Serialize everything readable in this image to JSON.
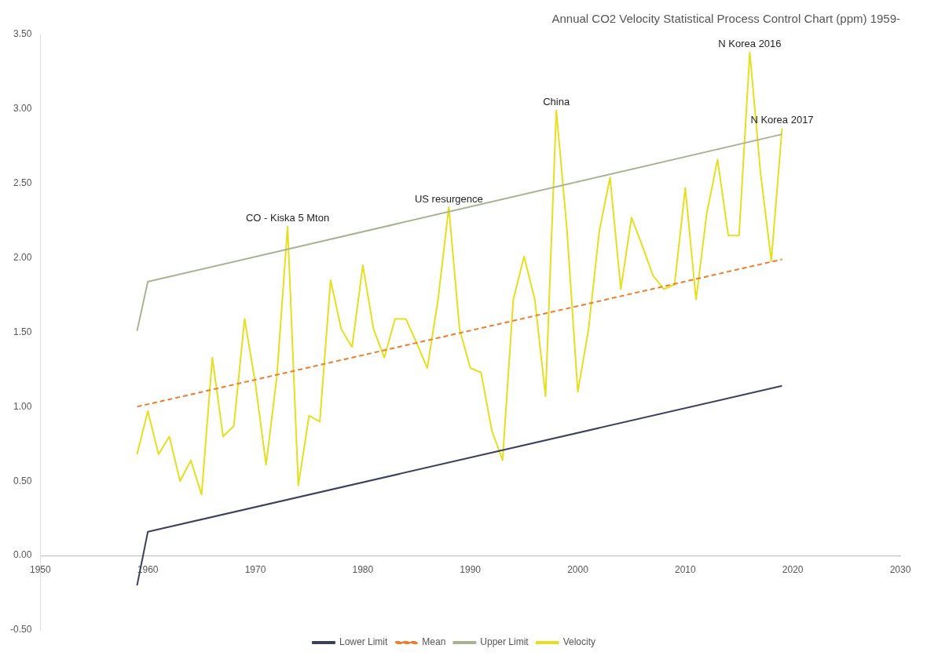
{
  "chart_data": {
    "type": "line",
    "title": "Annual CO2 Velocity Statistical Process Control Chart (ppm) 1959-",
    "x": [
      1959,
      1960,
      1961,
      1962,
      1963,
      1964,
      1965,
      1966,
      1967,
      1968,
      1969,
      1970,
      1971,
      1972,
      1973,
      1974,
      1975,
      1976,
      1977,
      1978,
      1979,
      1980,
      1981,
      1982,
      1983,
      1984,
      1985,
      1986,
      1987,
      1988,
      1989,
      1990,
      1991,
      1992,
      1993,
      1994,
      1995,
      1996,
      1997,
      1998,
      1999,
      2000,
      2001,
      2002,
      2003,
      2004,
      2005,
      2006,
      2007,
      2008,
      2009,
      2010,
      2011,
      2012,
      2013,
      2014,
      2015,
      2016,
      2017,
      2018,
      2019
    ],
    "series": [
      {
        "name": "Lower Limit",
        "color": "#3a4160",
        "x": [
          1959,
          1960,
          2019
        ],
        "values": [
          -0.2,
          0.16,
          1.14
        ]
      },
      {
        "name": "Mean",
        "color": "#ef7d2c",
        "line_style": "dashed",
        "x": [
          1959,
          2019
        ],
        "values": [
          1.0,
          1.99
        ]
      },
      {
        "name": "Upper Limit",
        "color": "#a8b38f",
        "x": [
          1959,
          1960,
          2019
        ],
        "values": [
          1.51,
          1.84,
          2.83
        ]
      },
      {
        "name": "Velocity",
        "color": "#e6df1f",
        "values": [
          0.68,
          0.97,
          0.68,
          0.8,
          0.5,
          0.64,
          0.41,
          1.33,
          0.8,
          0.87,
          1.59,
          1.16,
          0.61,
          1.2,
          2.21,
          0.47,
          0.94,
          0.9,
          1.85,
          1.52,
          1.4,
          1.95,
          1.52,
          1.33,
          1.59,
          1.59,
          1.43,
          1.26,
          1.72,
          2.34,
          1.52,
          1.26,
          1.23,
          0.84,
          0.64,
          1.72,
          2.01,
          1.72,
          1.07,
          2.99,
          2.18,
          1.1,
          1.52,
          2.18,
          2.54,
          1.79,
          2.27,
          2.08,
          1.88,
          1.79,
          1.82,
          2.47,
          1.72,
          2.3,
          2.66,
          2.15,
          2.15,
          3.38,
          2.57,
          1.98,
          2.87
        ]
      }
    ],
    "xlim": [
      1950,
      2030
    ],
    "xticks": [
      1950,
      1960,
      1970,
      1980,
      1990,
      2000,
      2010,
      2020,
      2030
    ],
    "ylim": [
      -0.5,
      3.5
    ],
    "yticks": [
      {
        "value": -0.5,
        "label": "-0.50"
      },
      {
        "value": 0,
        "label": "0.00"
      },
      {
        "value": 0.5,
        "label": "0.50"
      },
      {
        "value": 1,
        "label": "1.00"
      },
      {
        "value": 1.5,
        "label": "1.50"
      },
      {
        "value": 2,
        "label": "2.00"
      },
      {
        "value": 2.5,
        "label": "2.50"
      },
      {
        "value": 3,
        "label": "3.00"
      },
      {
        "value": 3.5,
        "label": "3.50"
      }
    ],
    "annotations": [
      {
        "text": "CO - Kiska 5 Mton",
        "x": 1973,
        "y": 2.21
      },
      {
        "text": "US resurgence",
        "x": 1988,
        "y": 2.34
      },
      {
        "text": "China",
        "x": 1998,
        "y": 2.99
      },
      {
        "text": "N Korea 2016",
        "x": 2016,
        "y": 3.38
      },
      {
        "text": "N Korea 2017",
        "x": 2019,
        "y": 2.87
      }
    ],
    "legend": "bottom",
    "grid": false
  }
}
